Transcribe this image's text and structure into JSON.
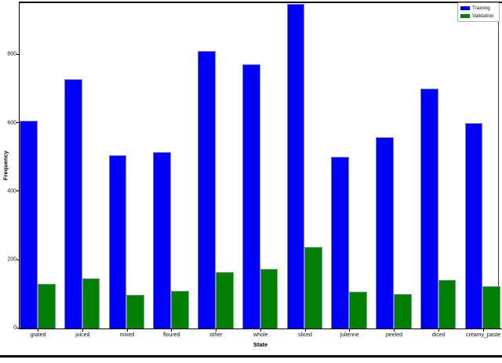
{
  "figure": {
    "background": "#ffffff",
    "frame_color": "#000000"
  },
  "chart_data": {
    "type": "bar",
    "title": "",
    "xlabel": "State",
    "ylabel": "Frequency",
    "categories": [
      "grated",
      "juiced",
      "mixed",
      "floured",
      "other",
      "whole",
      "sliced",
      "julienne",
      "peeled",
      "diced",
      "creamy_paste"
    ],
    "series": [
      {
        "name": "Training",
        "color": "#0000fa",
        "values": [
          608,
          728,
          506,
          515,
          812,
          772,
          948,
          502,
          560,
          700,
          600
        ]
      },
      {
        "name": "Validation",
        "color": "#008000",
        "values": [
          130,
          147,
          99,
          110,
          164,
          175,
          238,
          108,
          101,
          143,
          124
        ]
      }
    ],
    "ylim": [
      0,
      948
    ],
    "yticks": [
      0,
      200,
      400,
      600,
      800
    ],
    "grid": false,
    "legend_position": "upper right"
  },
  "legend": {
    "items": [
      {
        "label": "Training",
        "color": "#0000fa"
      },
      {
        "label": "Validation",
        "color": "#008000"
      }
    ]
  }
}
